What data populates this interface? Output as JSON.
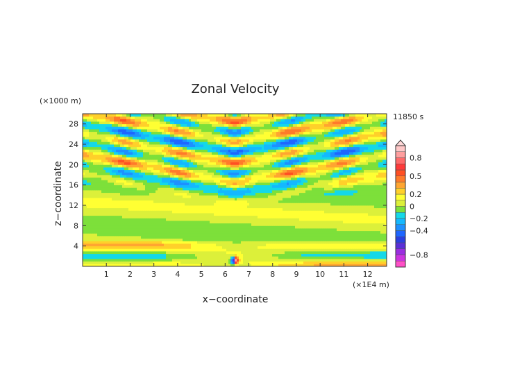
{
  "chart_data": {
    "type": "heatmap",
    "title": "Zonal Velocity",
    "xlabel": "x−coordinate",
    "ylabel": "z−coordinate",
    "x_unit": "(×1E4 m)",
    "y_unit": "(×1000 m)",
    "time_label": "11850 s",
    "xlim": [
      0,
      12.8
    ],
    "ylim": [
      0,
      30
    ],
    "x_ticks": [
      1,
      2,
      3,
      4,
      5,
      6,
      7,
      8,
      9,
      10,
      11,
      12
    ],
    "y_ticks": [
      4,
      8,
      12,
      16,
      20,
      24,
      28
    ],
    "colorbar": {
      "levels": [
        -1.0,
        -0.9,
        -0.8,
        -0.7,
        -0.6,
        -0.5,
        -0.4,
        -0.3,
        -0.2,
        -0.1,
        0,
        0.1,
        0.2,
        0.3,
        0.4,
        0.5,
        0.6,
        0.7,
        0.8,
        0.9,
        1.0
      ],
      "tick_labels": [
        {
          "value": 0.8,
          "label": "0.8"
        },
        {
          "value": 0.5,
          "label": "0.5"
        },
        {
          "value": 0.2,
          "label": "0.2"
        },
        {
          "value": 0,
          "label": "0"
        },
        {
          "value": -0.2,
          "label": "−0.2"
        },
        {
          "value": -0.4,
          "label": "−0.4"
        },
        {
          "value": -0.8,
          "label": "−0.8"
        }
      ]
    }
  }
}
